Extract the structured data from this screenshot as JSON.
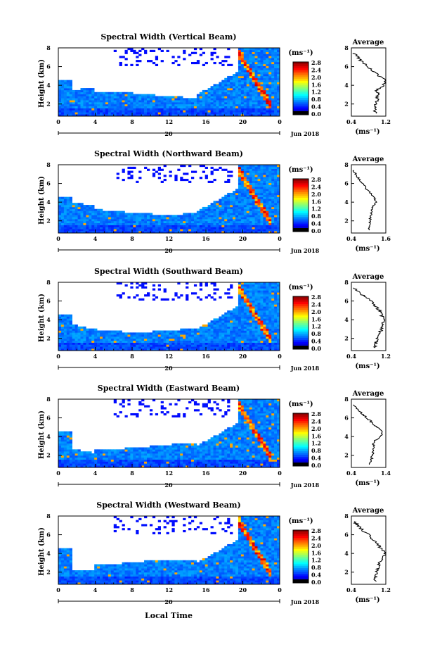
{
  "figure": {
    "date_label": "Jun 2018",
    "xlabel": "Local Time",
    "day_label": "20",
    "unit_label": "(ms⁻¹)",
    "avg_title": "Average",
    "avg_xlabel": "(ms⁻¹)"
  },
  "chart_data": [
    {
      "type": "heatmap",
      "title": "Spectral Width (Vertical Beam)",
      "ylabel": "Height (km)",
      "xlim": [
        0,
        24
      ],
      "ylim": [
        0.7,
        8
      ],
      "x_ticks": [
        "0",
        "4",
        "8",
        "12",
        "16",
        "20",
        "0"
      ],
      "y_ticks": [
        "2",
        "4",
        "6",
        "8"
      ],
      "colorbar": {
        "range": [
          0,
          2.8
        ],
        "ticks": [
          "2.8",
          "2.4",
          "2.0",
          "1.6",
          "1.2",
          "0.8",
          "0.4",
          "0.0"
        ]
      },
      "average_profile": {
        "xlim": [
          0.4,
          1.2
        ],
        "x_ticks": [
          "0.4",
          "1.2"
        ],
        "y_ticks": [
          "2",
          "4",
          "6",
          "8"
        ],
        "height": [
          1.0,
          1.5,
          2.0,
          2.5,
          3.0,
          3.5,
          4.0,
          4.5,
          5.0,
          5.5,
          6.0,
          6.5,
          7.0,
          7.5
        ],
        "value": [
          0.95,
          0.96,
          0.97,
          1.0,
          1.02,
          0.98,
          1.15,
          1.2,
          1.05,
          0.9,
          0.8,
          0.65,
          0.55,
          0.45
        ]
      }
    },
    {
      "type": "heatmap",
      "title": "Spectral Width (Northward Beam)",
      "ylabel": "Height (km)",
      "xlim": [
        0,
        24
      ],
      "ylim": [
        0.7,
        8
      ],
      "x_ticks": [
        "0",
        "4",
        "8",
        "12",
        "16",
        "20",
        "0"
      ],
      "y_ticks": [
        "2",
        "4",
        "6",
        "8"
      ],
      "colorbar": {
        "range": [
          0,
          2.8
        ],
        "ticks": [
          "2.8",
          "2.4",
          "2.0",
          "1.6",
          "1.2",
          "0.8",
          "0.4",
          "0.0"
        ]
      },
      "average_profile": {
        "xlim": [
          0.4,
          1.6
        ],
        "x_ticks": [
          "0.4",
          "1.6"
        ],
        "y_ticks": [
          "2",
          "4",
          "6",
          "8"
        ],
        "height": [
          1.0,
          1.5,
          2.0,
          2.5,
          3.0,
          3.5,
          4.0,
          4.5,
          5.0,
          5.5,
          6.0,
          6.5,
          7.0,
          7.5
        ],
        "value": [
          1.0,
          1.02,
          1.05,
          1.08,
          1.1,
          1.15,
          1.25,
          1.2,
          1.05,
          0.9,
          0.8,
          0.65,
          0.55,
          0.45
        ]
      }
    },
    {
      "type": "heatmap",
      "title": "Spectral Width (Southward Beam)",
      "ylabel": "Height (km)",
      "xlim": [
        0,
        24
      ],
      "ylim": [
        0.7,
        8
      ],
      "x_ticks": [
        "0",
        "4",
        "8",
        "12",
        "16",
        "20",
        "0"
      ],
      "y_ticks": [
        "2",
        "4",
        "6",
        "8"
      ],
      "colorbar": {
        "range": [
          0,
          2.8
        ],
        "ticks": [
          "2.8",
          "2.4",
          "2.0",
          "1.6",
          "1.2",
          "0.8",
          "0.4",
          "0.0"
        ]
      },
      "average_profile": {
        "xlim": [
          0.4,
          1.2
        ],
        "x_ticks": [
          "0.4",
          "1.2"
        ],
        "y_ticks": [
          "2",
          "4",
          "6",
          "8"
        ],
        "height": [
          1.0,
          1.5,
          2.0,
          2.5,
          3.0,
          3.5,
          4.0,
          4.5,
          5.0,
          5.5,
          6.0,
          6.5,
          7.0,
          7.5
        ],
        "value": [
          0.95,
          0.97,
          1.0,
          1.05,
          1.1,
          1.12,
          1.15,
          1.1,
          1.05,
          0.95,
          0.85,
          0.7,
          0.55,
          0.45
        ]
      }
    },
    {
      "type": "heatmap",
      "title": "Spectral Width (Eastward Beam)",
      "ylabel": "Height (km)",
      "xlim": [
        0,
        24
      ],
      "ylim": [
        0.7,
        8
      ],
      "x_ticks": [
        "0",
        "4",
        "8",
        "12",
        "16",
        "20",
        "0"
      ],
      "y_ticks": [
        "2",
        "4",
        "6",
        "8"
      ],
      "colorbar": {
        "range": [
          0,
          2.8
        ],
        "ticks": [
          "2.8",
          "2.4",
          "2.0",
          "1.6",
          "1.2",
          "0.8",
          "0.4",
          "0.0"
        ]
      },
      "average_profile": {
        "xlim": [
          0.4,
          1.4
        ],
        "x_ticks": [
          "0.4",
          "1.4"
        ],
        "y_ticks": [
          "2",
          "4",
          "6",
          "8"
        ],
        "height": [
          1.0,
          1.5,
          2.0,
          2.5,
          3.0,
          3.5,
          4.0,
          4.5,
          5.0,
          5.5,
          6.0,
          6.5,
          7.0,
          7.5
        ],
        "value": [
          0.95,
          0.97,
          1.0,
          1.02,
          1.05,
          1.05,
          1.25,
          1.3,
          1.15,
          1.0,
          0.85,
          0.7,
          0.55,
          0.45
        ]
      }
    },
    {
      "type": "heatmap",
      "title": "Spectral Width (Westward Beam)",
      "ylabel": "Height (km)",
      "xlim": [
        0,
        24
      ],
      "ylim": [
        0.7,
        8
      ],
      "x_ticks": [
        "0",
        "4",
        "8",
        "12",
        "16",
        "20",
        "0"
      ],
      "y_ticks": [
        "2",
        "4",
        "6",
        "8"
      ],
      "colorbar": {
        "range": [
          0,
          2.8
        ],
        "ticks": [
          "2.8",
          "2.4",
          "2.0",
          "1.6",
          "1.2",
          "0.8",
          "0.4",
          "0.0"
        ]
      },
      "average_profile": {
        "xlim": [
          0.4,
          1.2
        ],
        "x_ticks": [
          "0.4",
          "1.2"
        ],
        "y_ticks": [
          "2",
          "4",
          "6",
          "8"
        ],
        "height": [
          1.0,
          1.5,
          2.0,
          2.5,
          3.0,
          3.5,
          4.0,
          4.5,
          5.0,
          5.5,
          6.0,
          6.5,
          7.0,
          7.5
        ],
        "value": [
          0.95,
          0.97,
          1.0,
          1.02,
          1.05,
          1.15,
          1.2,
          1.1,
          1.0,
          0.9,
          0.8,
          0.65,
          0.55,
          0.45
        ]
      }
    }
  ]
}
